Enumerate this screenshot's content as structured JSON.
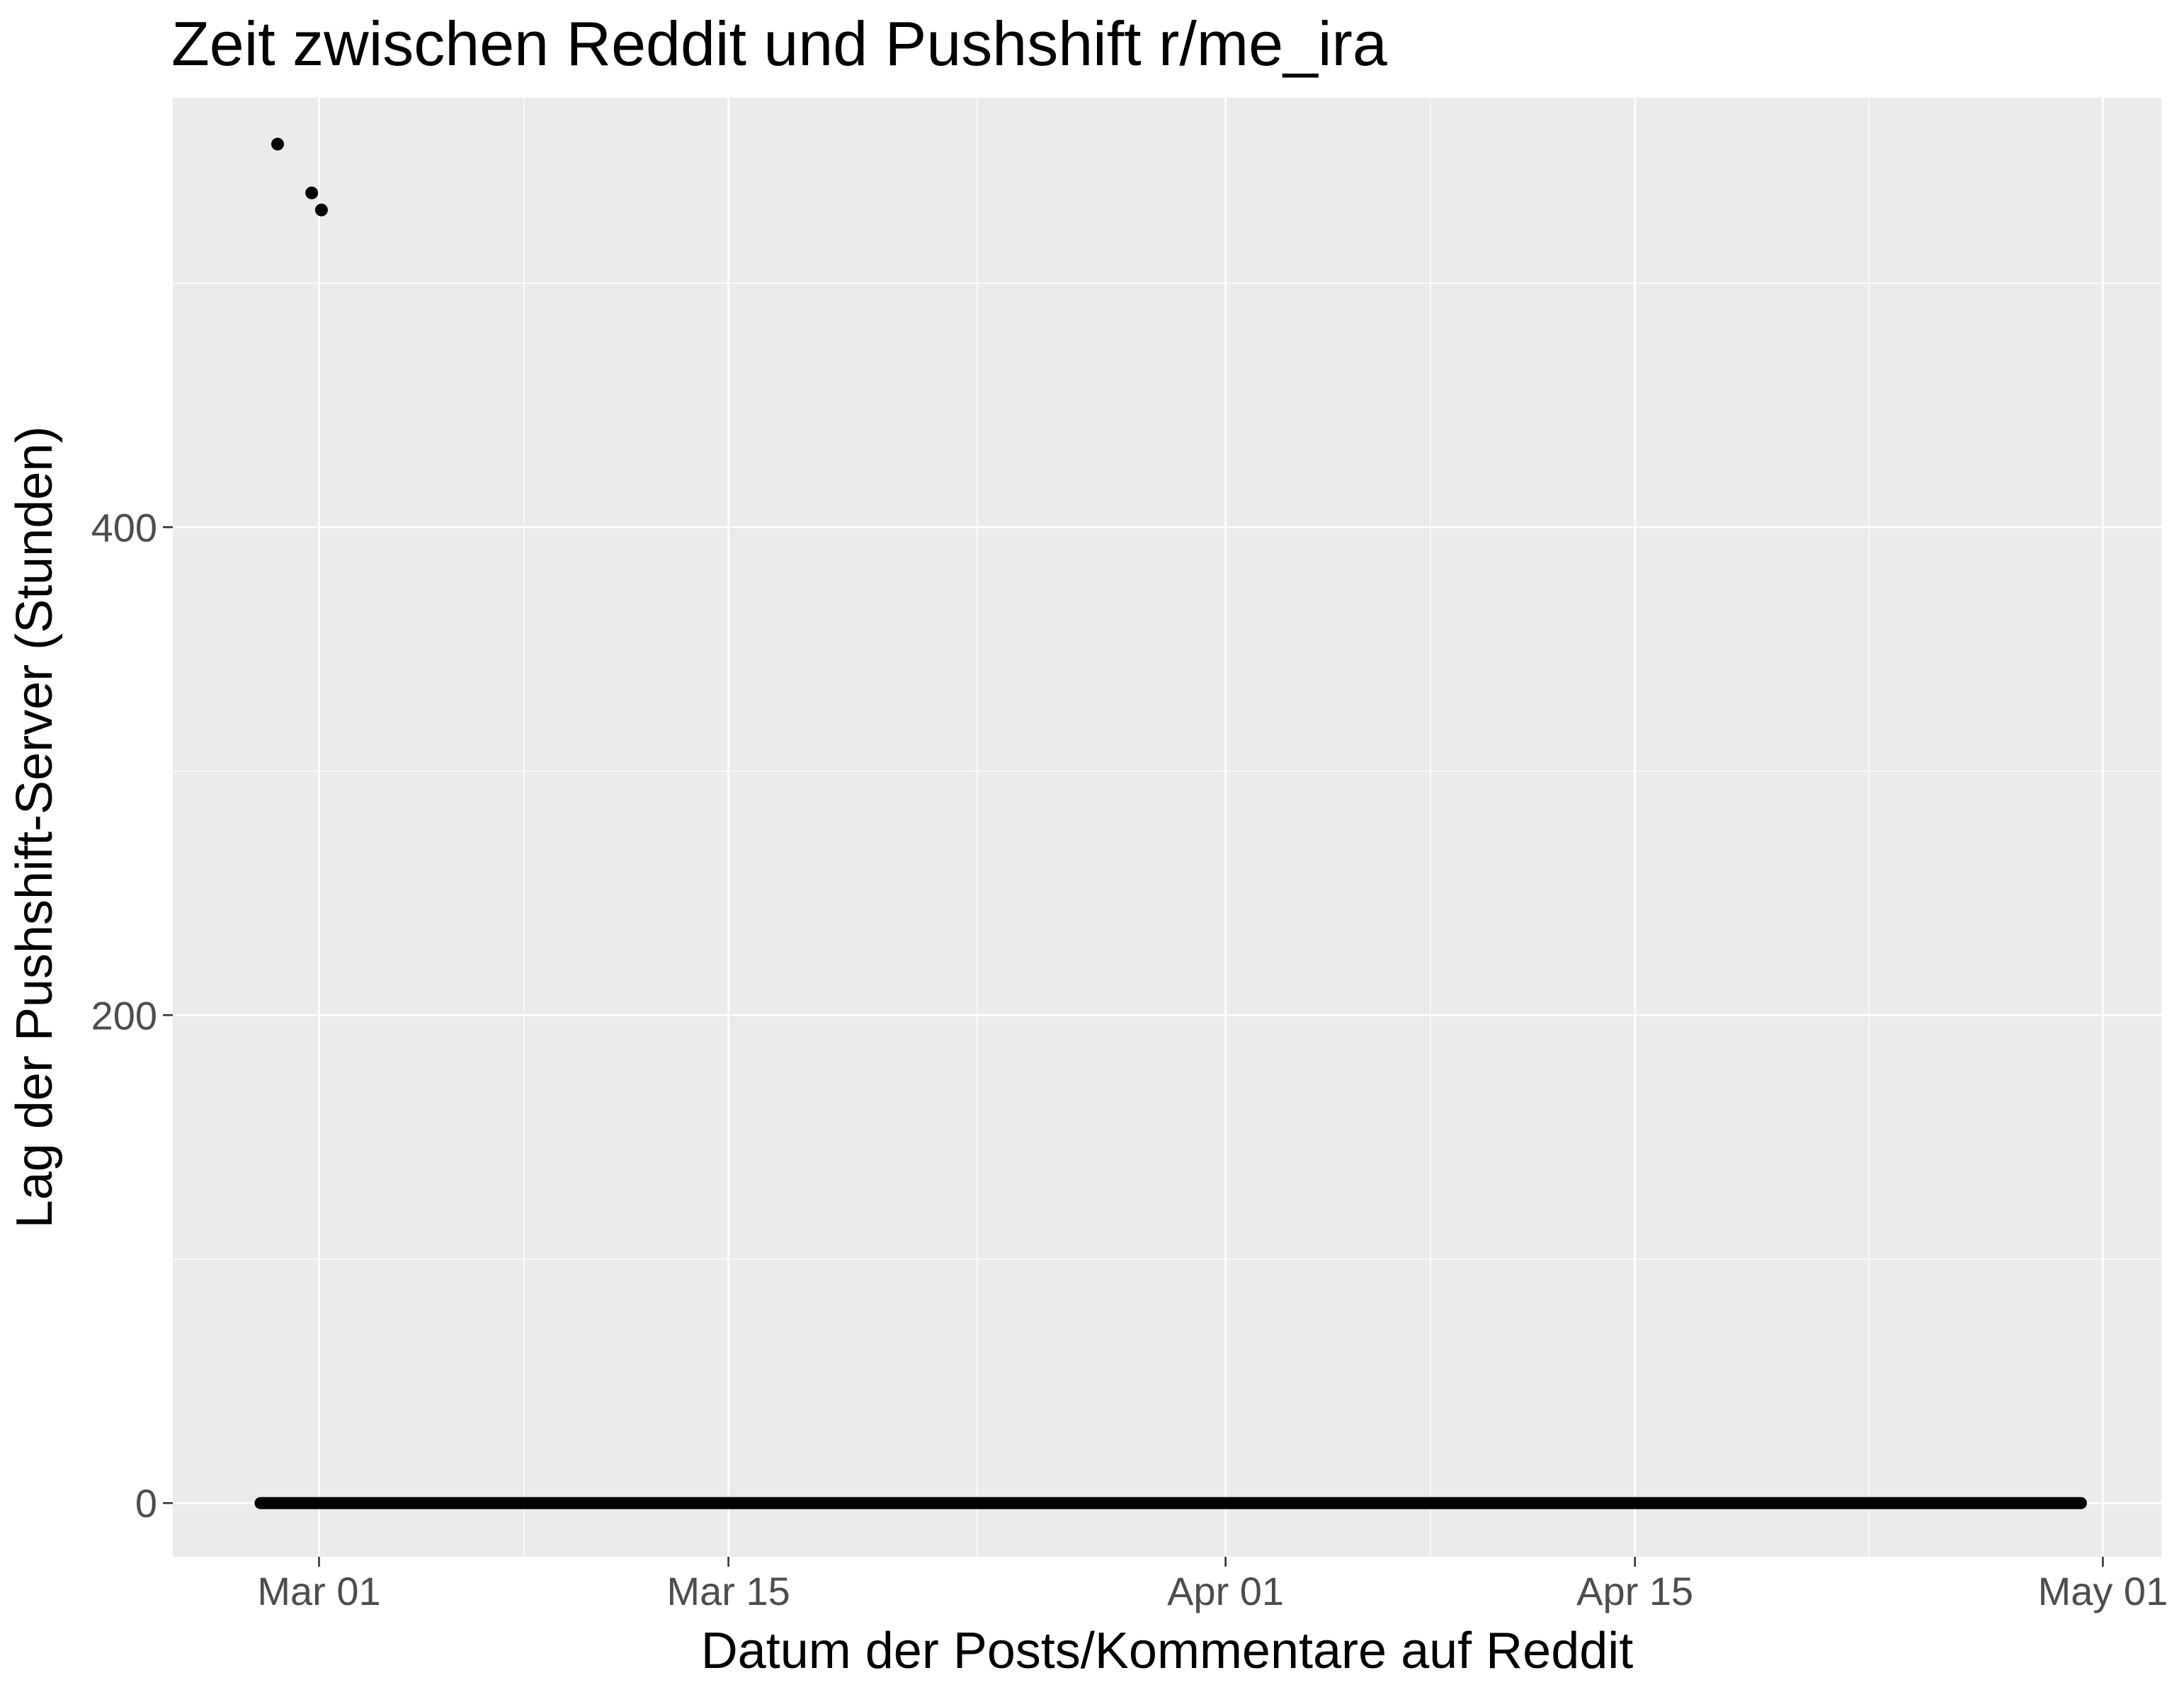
{
  "chart_data": {
    "type": "scatter",
    "title": "Zeit zwischen Reddit und Pushshift r/me_ira",
    "xlabel": "Datum der Posts/Kommentare auf Reddit",
    "ylabel": "Lag der Pushshift-Server (Stunden)",
    "x_scale": "date",
    "xlim": [
      "2019-02-24",
      "2019-05-03"
    ],
    "ylim": [
      -22,
      576
    ],
    "x_ticks": [
      {
        "value": "2019-03-01",
        "label": "Mar 01"
      },
      {
        "value": "2019-03-15",
        "label": "Mar 15"
      },
      {
        "value": "2019-04-01",
        "label": "Apr 01"
      },
      {
        "value": "2019-04-15",
        "label": "Apr 15"
      },
      {
        "value": "2019-05-01",
        "label": "May 01"
      }
    ],
    "y_ticks": [
      {
        "value": 0,
        "label": "0"
      },
      {
        "value": 200,
        "label": "200"
      },
      {
        "value": 400,
        "label": "400"
      }
    ],
    "grid": true,
    "outliers": [
      {
        "x": "2019-02-27T14:00",
        "y": 557
      },
      {
        "x": "2019-02-28T18:00",
        "y": 537
      },
      {
        "x": "2019-03-01T02:00",
        "y": 530
      }
    ],
    "baseline_series": {
      "from": "2019-02-27T00:00",
      "to": "2019-04-30T06:00",
      "y": 0
    },
    "colors": {
      "panel": "#ebebeb",
      "grid_major": "#ffffff",
      "point": "#000000",
      "tick_text": "#4d4d4d"
    }
  }
}
